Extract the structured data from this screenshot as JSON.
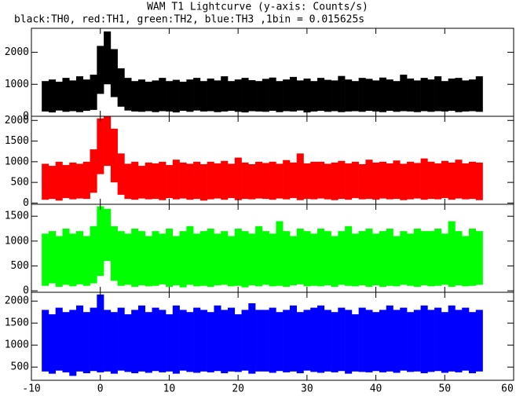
{
  "chart_data": {
    "type": "band",
    "title": "WAM T1 Lightcurve (y-axis: Counts/s)",
    "subtitle": "black:TH0, red:TH1, green:TH2, blue:TH3 ,1bin = 0.015625s",
    "x": [
      -8,
      -7,
      -6,
      -5,
      -4,
      -3,
      -2,
      -1,
      0,
      1,
      2,
      3,
      4,
      5,
      6,
      7,
      8,
      9,
      10,
      11,
      12,
      13,
      14,
      15,
      16,
      17,
      18,
      19,
      20,
      21,
      22,
      23,
      24,
      25,
      26,
      27,
      28,
      29,
      30,
      31,
      32,
      33,
      34,
      35,
      36,
      37,
      38,
      39,
      40,
      41,
      42,
      43,
      44,
      45,
      46,
      47,
      48,
      49,
      50,
      51,
      52,
      53,
      54,
      55
    ],
    "xlim": [
      -10,
      60
    ],
    "xticks": [
      -10,
      0,
      10,
      20,
      30,
      40,
      50,
      60
    ],
    "panels": [
      {
        "color": "#000000",
        "ylim": [
          0,
          2750
        ],
        "yticks": [
          0,
          1000,
          2000
        ],
        "high": [
          1100,
          1150,
          1080,
          1200,
          1120,
          1250,
          1150,
          1300,
          2200,
          2650,
          2100,
          1500,
          1200,
          1100,
          1150,
          1080,
          1120,
          1200,
          1100,
          1140,
          1080,
          1150,
          1200,
          1100,
          1180,
          1120,
          1250,
          1100,
          1150,
          1200,
          1130,
          1100,
          1170,
          1210,
          1100,
          1150,
          1230,
          1120,
          1180,
          1100,
          1200,
          1140,
          1120,
          1260,
          1150,
          1100,
          1200,
          1170,
          1120,
          1210,
          1150,
          1100,
          1300,
          1180,
          1120,
          1200,
          1150,
          1250,
          1100,
          1180,
          1200,
          1120,
          1150,
          1250
        ],
        "low": [
          150,
          120,
          180,
          140,
          160,
          130,
          170,
          200,
          700,
          1000,
          600,
          300,
          180,
          150,
          140,
          160,
          130,
          160,
          150,
          120,
          170,
          140,
          180,
          150,
          160,
          130,
          150,
          170,
          140,
          120,
          160,
          150,
          140,
          170,
          130,
          160,
          150,
          180,
          120,
          150,
          170,
          140,
          160,
          130,
          150,
          160,
          140,
          170,
          150,
          130,
          170,
          140,
          160,
          150,
          130,
          160,
          140,
          160,
          150,
          170,
          130,
          150,
          160,
          140
        ]
      },
      {
        "color": "#ff0000",
        "ylim": [
          -30,
          2100
        ],
        "yticks": [
          0,
          500,
          1000,
          1500,
          2000
        ],
        "high": [
          950,
          900,
          1000,
          920,
          980,
          950,
          1000,
          1300,
          2050,
          2100,
          1800,
          1200,
          950,
          1000,
          900,
          980,
          960,
          1000,
          920,
          1050,
          980,
          950,
          1000,
          940,
          1000,
          960,
          1020,
          950,
          1100,
          980,
          940,
          1000,
          970,
          1000,
          950,
          1040,
          980,
          1200,
          960,
          1000,
          1000,
          950,
          980,
          1020,
          960,
          1000,
          940,
          1050,
          980,
          1000,
          960,
          1030,
          950,
          1000,
          970,
          1080,
          1000,
          960,
          1020,
          980,
          1050,
          960,
          1000,
          980
        ],
        "low": [
          80,
          100,
          60,
          120,
          90,
          110,
          100,
          250,
          700,
          900,
          500,
          200,
          100,
          80,
          110,
          90,
          100,
          70,
          120,
          90,
          110,
          80,
          100,
          60,
          90,
          110,
          80,
          120,
          70,
          100,
          90,
          110,
          100,
          80,
          110,
          90,
          120,
          70,
          100,
          90,
          110,
          90,
          70,
          100,
          80,
          120,
          90,
          100,
          80,
          110,
          90,
          100,
          70,
          90,
          110,
          80,
          100,
          90,
          120,
          80,
          110,
          90,
          100,
          70
        ]
      },
      {
        "color": "#00ff00",
        "ylim": [
          -30,
          1740
        ],
        "yticks": [
          0,
          500,
          1000,
          1500
        ],
        "high": [
          1150,
          1200,
          1100,
          1250,
          1150,
          1200,
          1100,
          1300,
          1700,
          1650,
          1300,
          1200,
          1150,
          1250,
          1200,
          1100,
          1200,
          1150,
          1250,
          1100,
          1200,
          1300,
          1150,
          1200,
          1250,
          1150,
          1200,
          1100,
          1250,
          1200,
          1150,
          1300,
          1200,
          1150,
          1400,
          1200,
          1100,
          1250,
          1200,
          1150,
          1250,
          1200,
          1100,
          1200,
          1300,
          1150,
          1200,
          1250,
          1150,
          1200,
          1250,
          1100,
          1200,
          1150,
          1250,
          1200,
          1200,
          1250,
          1150,
          1400,
          1200,
          1100,
          1250,
          1200
        ],
        "low": [
          100,
          150,
          80,
          120,
          90,
          130,
          100,
          150,
          300,
          600,
          200,
          100,
          120,
          80,
          110,
          90,
          100,
          130,
          80,
          110,
          70,
          120,
          90,
          100,
          80,
          110,
          120,
          90,
          100,
          70,
          110,
          90,
          120,
          90,
          100,
          80,
          110,
          130,
          90,
          100,
          90,
          110,
          80,
          120,
          100,
          90,
          110,
          80,
          110,
          80,
          100,
          90,
          120,
          100,
          80,
          110,
          90,
          100,
          120,
          80,
          110,
          90,
          100,
          120
        ]
      },
      {
        "color": "#0000ff",
        "ylim": [
          200,
          2200
        ],
        "yticks": [
          500,
          1000,
          1500,
          2000
        ],
        "high": [
          1800,
          1700,
          1850,
          1750,
          1800,
          1900,
          1750,
          1850,
          2150,
          1800,
          1750,
          1850,
          1700,
          1800,
          1900,
          1750,
          1850,
          1800,
          1700,
          1900,
          1800,
          1750,
          1850,
          1800,
          1750,
          1900,
          1800,
          1850,
          1700,
          1800,
          1950,
          1800,
          1800,
          1850,
          1750,
          1800,
          1900,
          1750,
          1800,
          1850,
          1900,
          1800,
          1750,
          1850,
          1800,
          1700,
          1850,
          1800,
          1750,
          1800,
          1900,
          1800,
          1850,
          1750,
          1800,
          1900,
          1800,
          1850,
          1750,
          1900,
          1800,
          1850,
          1750,
          1800
        ],
        "low": [
          400,
          350,
          420,
          380,
          300,
          400,
          360,
          410,
          380,
          400,
          350,
          420,
          390,
          360,
          400,
          370,
          410,
          380,
          400,
          350,
          420,
          390,
          370,
          400,
          380,
          410,
          360,
          400,
          390,
          420,
          350,
          400,
          400,
          370,
          410,
          380,
          400,
          360,
          420,
          390,
          370,
          400,
          380,
          410,
          350,
          400,
          390,
          380,
          410,
          380,
          400,
          370,
          420,
          390,
          400,
          360,
          390,
          410,
          370,
          400,
          380,
          420,
          360,
          400
        ]
      }
    ]
  }
}
